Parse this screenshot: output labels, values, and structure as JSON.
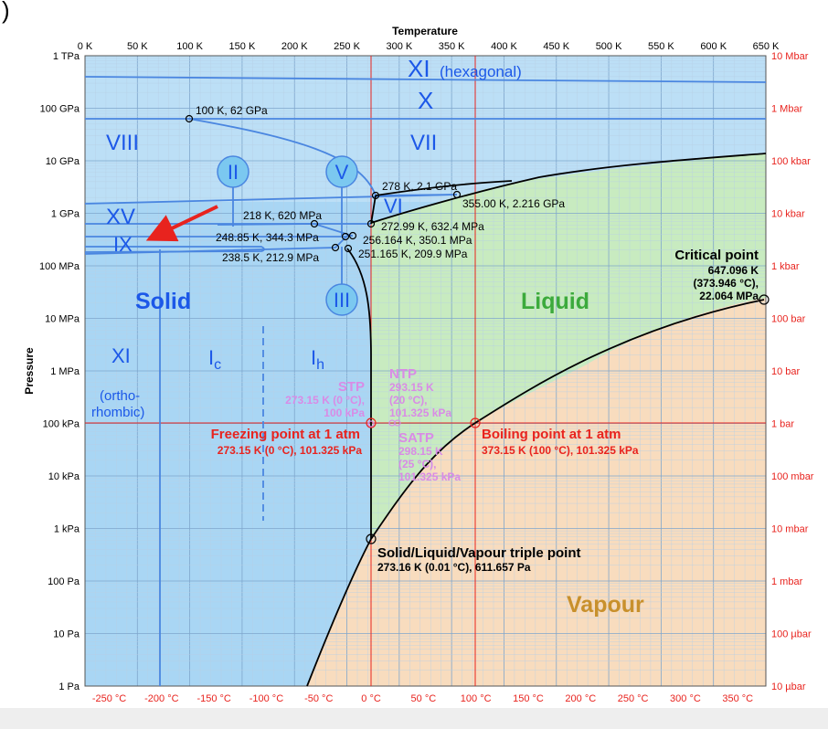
{
  "page": {
    "corner_glyph": ")"
  },
  "colors": {
    "solid": "#9ed0f2",
    "liquid": "#c9ebc0",
    "vapour": "#f8dcbf",
    "boundary": "#000000",
    "ice_boundary": "#4a86e0",
    "phase_label": "#1c58e8",
    "red_axis": "#e8231e",
    "std_conditions": "#d98be6",
    "liquid_label": "#3caa3c",
    "vapour_label": "#c8902c",
    "grid": "#9bbbd8"
  },
  "axes": {
    "top_title": "Temperature",
    "left_title": "Pressure",
    "kelvin_ticks": [
      "0 K",
      "50 K",
      "100 K",
      "150 K",
      "200 K",
      "250 K",
      "300 K",
      "350 K",
      "400 K",
      "450 K",
      "500 K",
      "550 K",
      "600 K",
      "650 K"
    ],
    "celsius_ticks": [
      "-250 °C",
      "-200 °C",
      "-150 °C",
      "-100 °C",
      "-50 °C",
      "0 °C",
      "50 °C",
      "100 °C",
      "150 °C",
      "200 °C",
      "250 °C",
      "300 °C",
      "350 °C"
    ],
    "pascal_ticks": [
      "1 TPa",
      "100 GPa",
      "10 GPa",
      "1 GPa",
      "100 MPa",
      "10 MPa",
      "1 MPa",
      "100 kPa",
      "10 kPa",
      "1 kPa",
      "100 Pa",
      "10 Pa",
      "1 Pa"
    ],
    "bar_ticks": [
      "10 Mbar",
      "1 Mbar",
      "100 kbar",
      "10 kbar",
      "1 kbar",
      "100 bar",
      "10 bar",
      "1 bar",
      "100 mbar",
      "10 mbar",
      "1 mbar",
      "100 µbar",
      "10 µbar"
    ],
    "x_range_K": [
      0,
      650
    ],
    "y_range_log10_Pa": [
      0,
      12
    ]
  },
  "phases": {
    "ice_xi_hex": "XI",
    "ice_xi_hex_note": "(hexagonal)",
    "ice_x": "X",
    "ice_viii": "VIII",
    "ice_vii": "VII",
    "ice_ii": "II",
    "ice_v": "V",
    "ice_vi": "VI",
    "ice_xv": "XV",
    "ice_ix": "IX",
    "ice_iii": "III",
    "solid": "Solid",
    "liquid": "Liquid",
    "vapour": "Vapour",
    "ice_xi_ortho": "XI",
    "ice_xi_ortho_note1": "(ortho-",
    "ice_xi_ortho_note2": "rhombic)",
    "ice_ic": "I",
    "ice_ic_sub": "c",
    "ice_ih": "I",
    "ice_ih_sub": "h"
  },
  "points": {
    "p_100k": "100 K, 62 GPa",
    "p_278k": "278 K, 2.1 GPa",
    "p_355k": "355.00 K, 2.216 GPa",
    "p_218k": "218 K, 620 MPa",
    "p_272k": "272.99 K, 632.4 MPa",
    "p_248k": "248.85 K, 344.3 MPa",
    "p_256k": "256.164 K, 350.1 MPa",
    "p_251k": "251.165 K, 209.9 MPa",
    "p_238k": "238.5 K, 212.9 MPa",
    "critical_title": "Critical point",
    "critical_1": "647.096 K",
    "critical_2": "(373.946 °C),",
    "critical_3": "22.064 MPa",
    "stp_title": "STP",
    "stp_1": "273.15 K (0 °C),",
    "stp_2": "100 kPa",
    "ntp_title": "NTP",
    "ntp_1": "293.15 K",
    "ntp_2": "(20 °C),",
    "ntp_3": "101.325 kPa",
    "satp_title": "SATP",
    "satp_1": "298.15 K",
    "satp_2": "(25 °C),",
    "satp_3": "101.325 kPa",
    "freezing_title": "Freezing point at 1 atm",
    "freezing_1": "273.15 K (0 °C), 101.325 kPa",
    "boiling_title": "Boiling point at 1 atm",
    "boiling_1": "373.15 K (100 °C), 101.325 kPa",
    "triple_title": "Solid/Liquid/Vapour triple point",
    "triple_1": "273.16 K (0.01 °C), 611.657 Pa"
  }
}
